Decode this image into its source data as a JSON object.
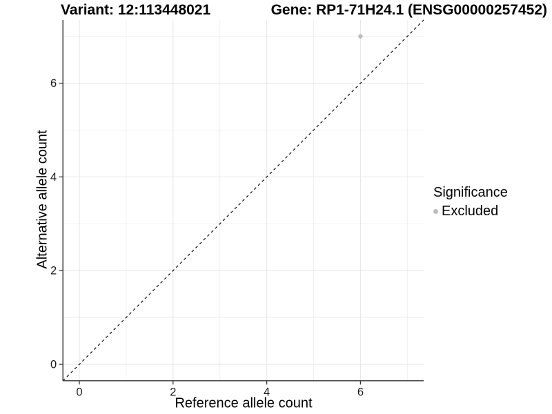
{
  "chart_data": {
    "type": "scatter",
    "title_left": "Variant: 12:113448021",
    "title_right": "Gene: RP1-71H24.1 (ENSG00000257452)",
    "xlabel": "Reference allele count",
    "ylabel": "Alternative allele count",
    "xlim": [
      -0.35,
      7.35
    ],
    "ylim": [
      -0.35,
      7.35
    ],
    "x_ticks": [
      0,
      2,
      4,
      6
    ],
    "y_ticks": [
      0,
      2,
      4,
      6
    ],
    "x_minor_gridlines": [
      1,
      3,
      5,
      7
    ],
    "y_minor_gridlines": [
      1,
      3,
      5,
      7
    ],
    "grid": "on",
    "reference_line": {
      "type": "identity y=x",
      "style": "dashed",
      "color": "#000000"
    },
    "series": [
      {
        "name": "Excluded",
        "color": "#bdbdbd",
        "points": [
          {
            "x": 6,
            "y": 7
          }
        ]
      }
    ],
    "legend": {
      "title": "Significance",
      "position": "right",
      "entries": [
        {
          "label": "Excluded",
          "color": "#bdbdbd"
        }
      ]
    },
    "colors": {
      "background": "#ffffff",
      "grid_major": "#e6e6e6",
      "grid_minor": "#eeeeee",
      "axis_line": "#333333",
      "tick_text": "#1a1a1a"
    }
  }
}
